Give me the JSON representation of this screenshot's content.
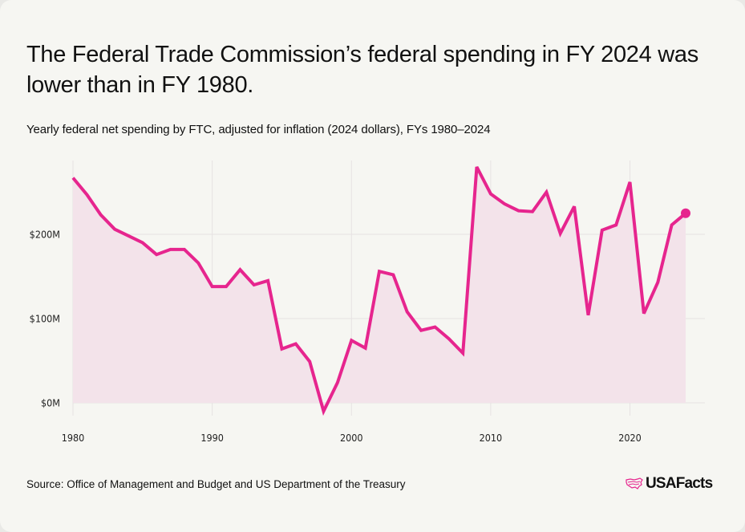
{
  "title": "The Federal Trade Commission’s federal spending in FY 2024 was lower than in FY 1980.",
  "subtitle": "Yearly federal net spending by FTC, adjusted for inflation (2024 dollars), FYs 1980–2024",
  "source": "Source: Office of Management and Budget and US Department of the Treasury",
  "brand": {
    "name": "USAFacts",
    "icon": "usa-map-icon"
  },
  "colors": {
    "line": "#e6258e",
    "fill": "#f3e3ea",
    "grid": "#e6e2e2",
    "background": "#f6f6f2",
    "text": "#111111"
  },
  "chart_data": {
    "type": "area",
    "title": "The Federal Trade Commission’s federal spending in FY 2024 was lower than in FY 1980.",
    "subtitle": "Yearly federal net spending by FTC, adjusted for inflation (2024 dollars), FYs 1980–2024",
    "xlabel": "",
    "ylabel": "",
    "x": [
      1980,
      1981,
      1982,
      1983,
      1984,
      1985,
      1986,
      1987,
      1988,
      1989,
      1990,
      1991,
      1992,
      1993,
      1994,
      1995,
      1996,
      1997,
      1998,
      1999,
      2000,
      2001,
      2002,
      2003,
      2004,
      2005,
      2006,
      2007,
      2008,
      2009,
      2010,
      2011,
      2012,
      2013,
      2014,
      2015,
      2016,
      2017,
      2018,
      2019,
      2020,
      2021,
      2022,
      2023,
      2024
    ],
    "series": [
      {
        "name": "FTC net spending (2024 dollars, $M)",
        "values": [
          267,
          247,
          223,
          206,
          198,
          190,
          176,
          182,
          182,
          166,
          138,
          138,
          158,
          140,
          145,
          64,
          70,
          49,
          -10,
          24,
          74,
          65,
          156,
          152,
          108,
          86,
          90,
          76,
          59,
          280,
          248,
          236,
          228,
          227,
          250,
          201,
          233,
          104,
          205,
          211,
          262,
          106,
          143,
          211,
          225
        ]
      }
    ],
    "xlim": [
      1980,
      2025
    ],
    "ylim": [
      -10,
      290
    ],
    "x_ticks": [
      1980,
      1990,
      2000,
      2010,
      2020
    ],
    "x_tick_labels": [
      "1980",
      "1990",
      "2000",
      "2010",
      "2020"
    ],
    "y_ticks": [
      0,
      100,
      200
    ],
    "y_tick_labels": [
      "$0M",
      "$100M",
      "$200M"
    ],
    "grid": true,
    "legend": "none",
    "highlight_last_point": true
  }
}
